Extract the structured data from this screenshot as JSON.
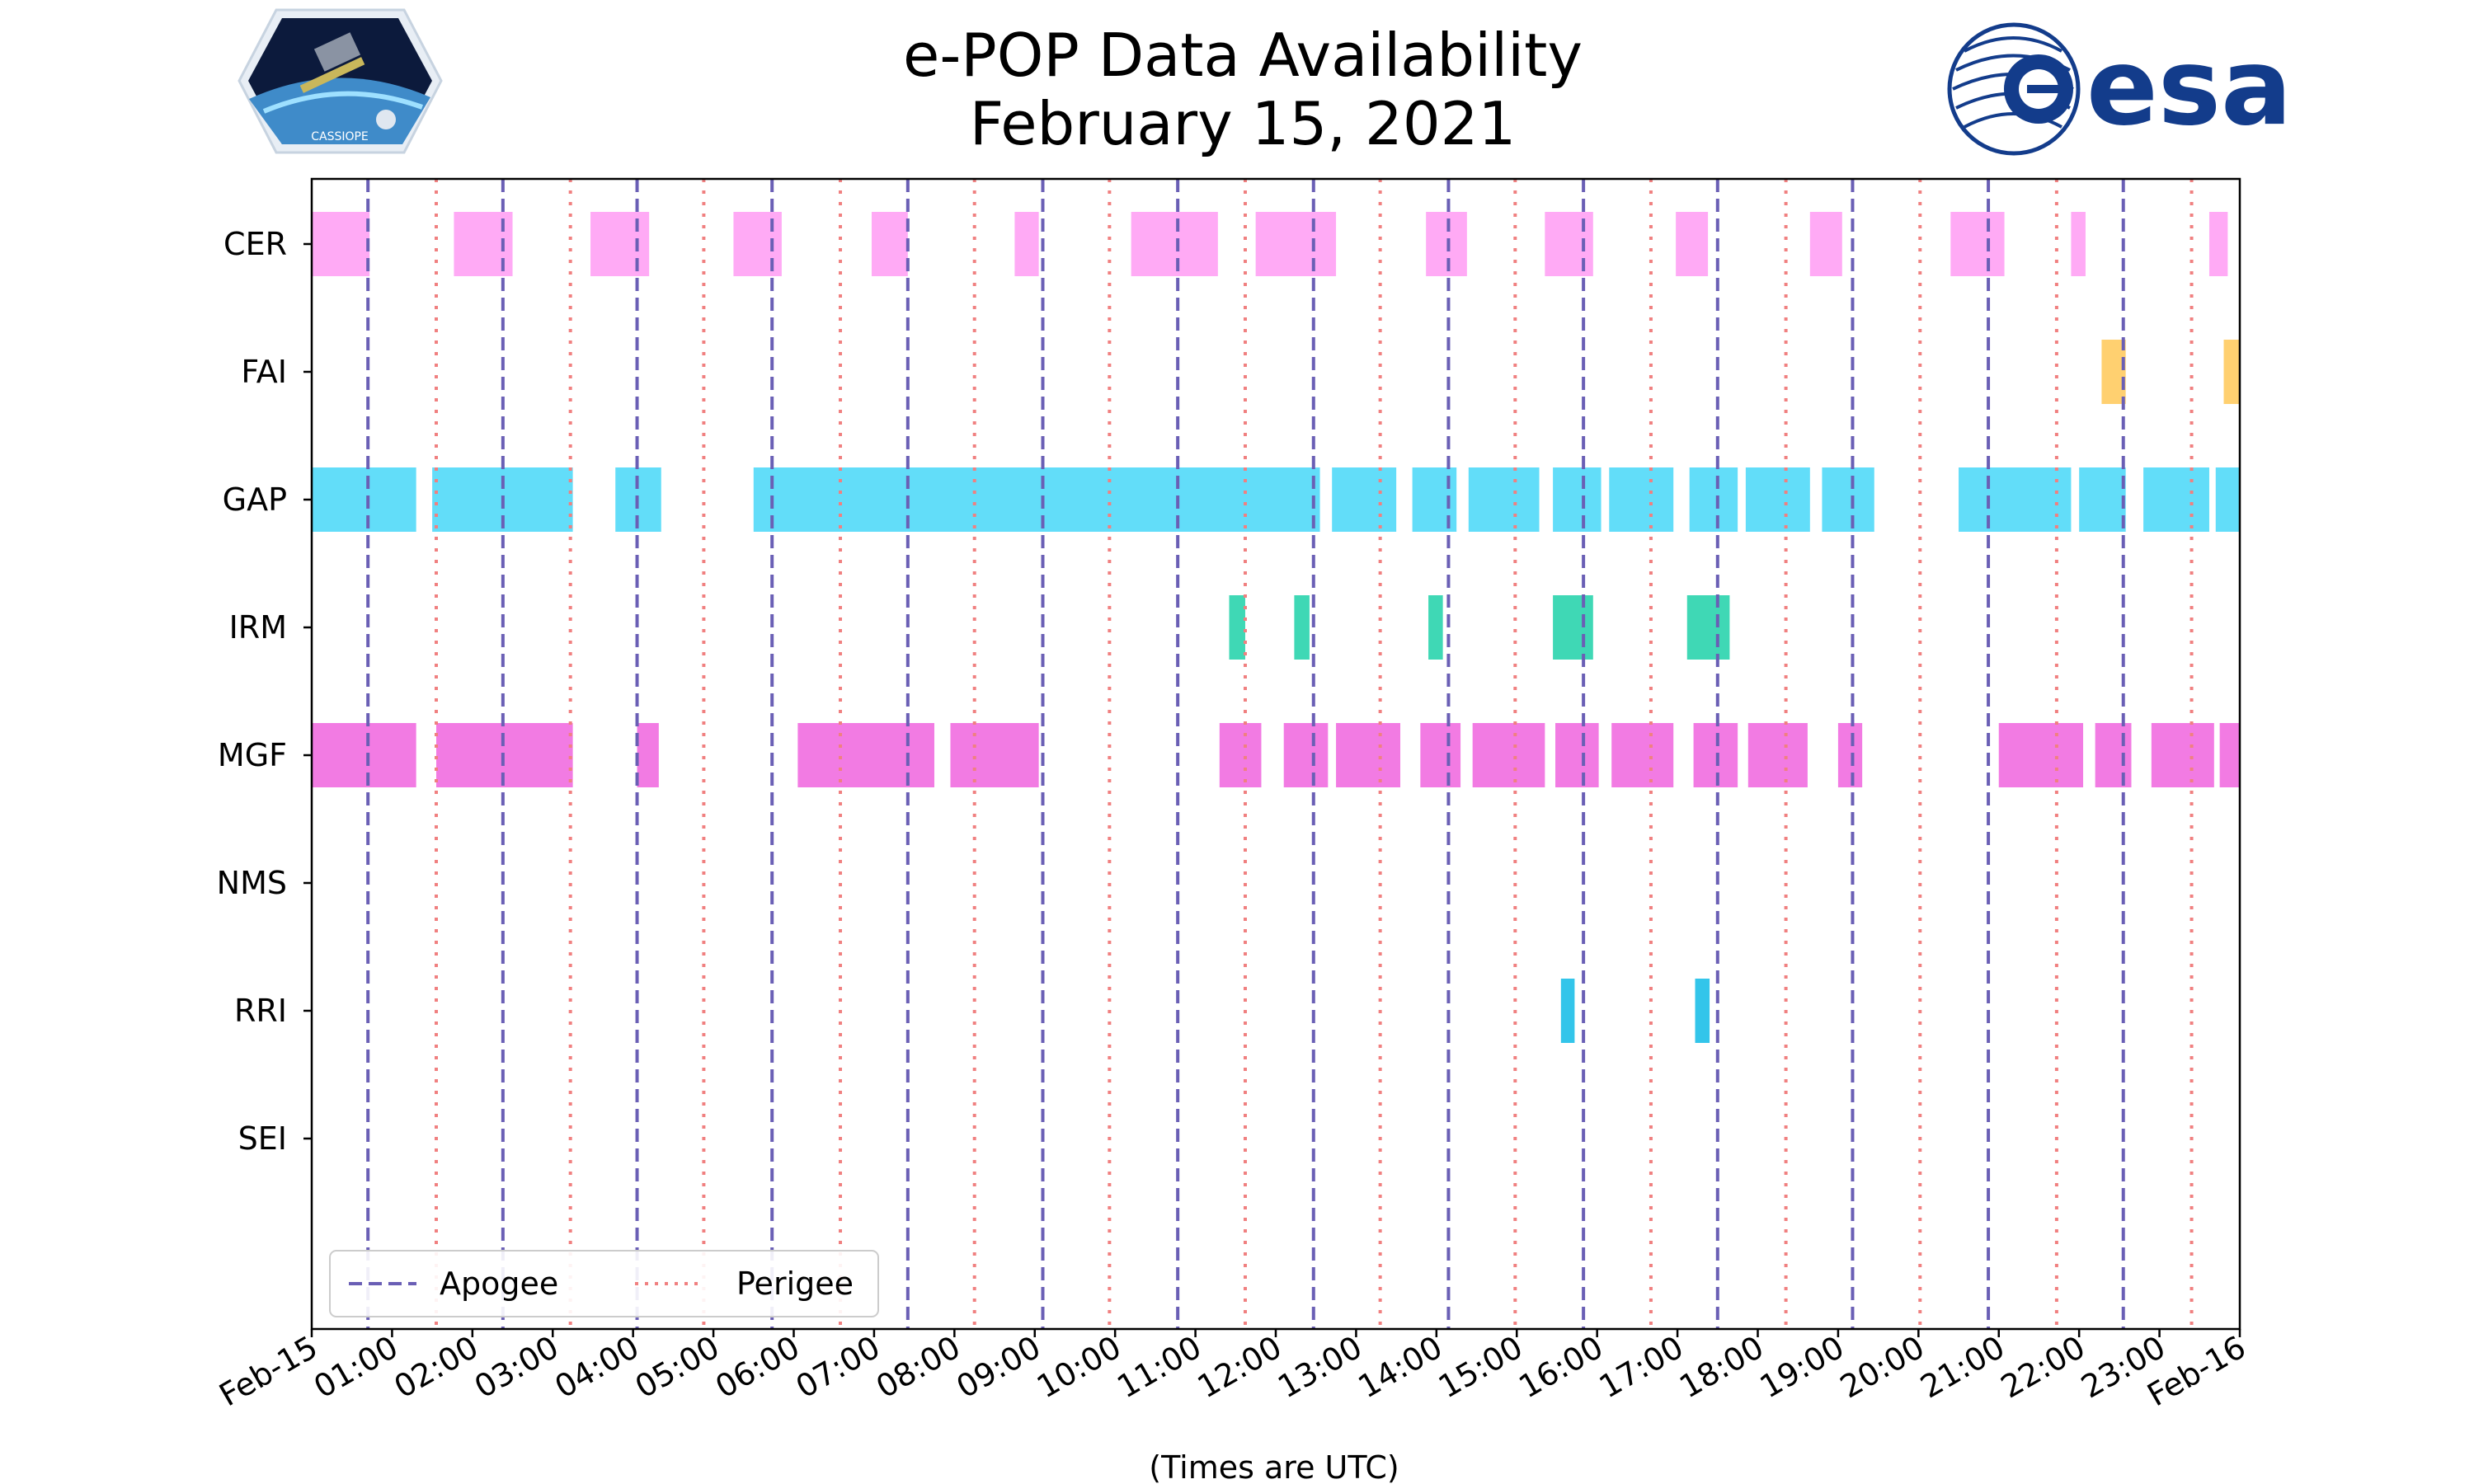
{
  "chart_data": {
    "type": "timeline",
    "title": "e-POP Data Availability",
    "subtitle": "February 15, 2021",
    "xlabel": "(Times are UTC)",
    "xlim": [
      0,
      24
    ],
    "x_tick_labels": [
      "Feb-15",
      "01:00",
      "02:00",
      "03:00",
      "04:00",
      "05:00",
      "06:00",
      "07:00",
      "08:00",
      "09:00",
      "10:00",
      "11:00",
      "12:00",
      "13:00",
      "14:00",
      "15:00",
      "16:00",
      "17:00",
      "18:00",
      "19:00",
      "20:00",
      "21:00",
      "22:00",
      "23:00",
      "Feb-16"
    ],
    "instruments": [
      {
        "name": "CER",
        "color": "#FFAAF5",
        "intervals": [
          [
            0.0,
            0.72
          ],
          [
            1.77,
            2.5
          ],
          [
            3.47,
            4.2
          ],
          [
            5.25,
            5.85
          ],
          [
            6.97,
            7.42
          ],
          [
            8.75,
            9.05
          ],
          [
            10.2,
            11.28
          ],
          [
            11.75,
            12.75
          ],
          [
            13.87,
            14.38
          ],
          [
            15.35,
            15.95
          ],
          [
            16.98,
            17.38
          ],
          [
            18.65,
            19.05
          ],
          [
            20.4,
            21.07
          ],
          [
            21.9,
            22.08
          ],
          [
            23.62,
            23.85
          ]
        ]
      },
      {
        "name": "FAI",
        "color": "#FFD070",
        "intervals": [
          [
            22.28,
            22.58
          ],
          [
            23.8,
            24.0
          ]
        ]
      },
      {
        "name": "GAP",
        "color": "#62DDF9",
        "intervals": [
          [
            0.0,
            1.3
          ],
          [
            1.5,
            3.25
          ],
          [
            3.78,
            4.35
          ],
          [
            5.5,
            12.55
          ],
          [
            12.7,
            13.5
          ],
          [
            13.7,
            14.25
          ],
          [
            14.4,
            15.28
          ],
          [
            15.45,
            16.05
          ],
          [
            16.15,
            16.95
          ],
          [
            17.15,
            17.75
          ],
          [
            17.85,
            18.65
          ],
          [
            18.8,
            19.45
          ],
          [
            20.5,
            21.9
          ],
          [
            22.0,
            22.58
          ],
          [
            22.8,
            23.62
          ],
          [
            23.7,
            24.0
          ]
        ]
      },
      {
        "name": "IRM",
        "color": "#3FD8B5",
        "intervals": [
          [
            11.42,
            11.62
          ],
          [
            12.23,
            12.42
          ],
          [
            13.9,
            14.08
          ],
          [
            15.45,
            15.95
          ],
          [
            17.12,
            17.65
          ]
        ]
      },
      {
        "name": "MGF",
        "color": "#F27BE3",
        "intervals": [
          [
            0.0,
            1.3
          ],
          [
            1.55,
            3.25
          ],
          [
            4.05,
            4.32
          ],
          [
            6.05,
            7.75
          ],
          [
            7.95,
            9.05
          ],
          [
            11.3,
            11.82
          ],
          [
            12.1,
            12.65
          ],
          [
            12.75,
            13.55
          ],
          [
            13.8,
            14.3
          ],
          [
            14.45,
            15.35
          ],
          [
            15.48,
            16.02
          ],
          [
            16.18,
            16.95
          ],
          [
            17.2,
            17.75
          ],
          [
            17.88,
            18.62
          ],
          [
            19.0,
            19.3
          ],
          [
            21.0,
            22.05
          ],
          [
            22.2,
            22.65
          ],
          [
            22.9,
            23.68
          ],
          [
            23.75,
            24.0
          ]
        ]
      },
      {
        "name": "NMS",
        "color": "#F27BE3",
        "intervals": []
      },
      {
        "name": "RRI",
        "color": "#33C5EA",
        "intervals": [
          [
            15.55,
            15.72
          ],
          [
            17.22,
            17.4
          ]
        ]
      },
      {
        "name": "SEI",
        "color": "#F27BE3",
        "intervals": []
      }
    ],
    "apogee": {
      "label": "Apogee",
      "color": "#6A5FB5",
      "times": [
        0.7,
        2.38,
        4.05,
        5.73,
        7.42,
        9.1,
        10.78,
        12.47,
        14.15,
        15.83,
        17.5,
        19.18,
        20.87,
        22.55
      ]
    },
    "perigee": {
      "label": "Perigee",
      "color": "#F08080",
      "times": [
        1.55,
        3.22,
        4.88,
        6.58,
        8.25,
        9.93,
        11.62,
        13.3,
        14.98,
        16.67,
        18.35,
        20.02,
        21.72,
        23.4
      ]
    },
    "legend_position": "lower-left"
  },
  "logos": {
    "left_caption": "CASSIOPE",
    "right_text": "esa"
  },
  "colors": {
    "esa_blue": "#133C8B",
    "axis": "#000000"
  }
}
